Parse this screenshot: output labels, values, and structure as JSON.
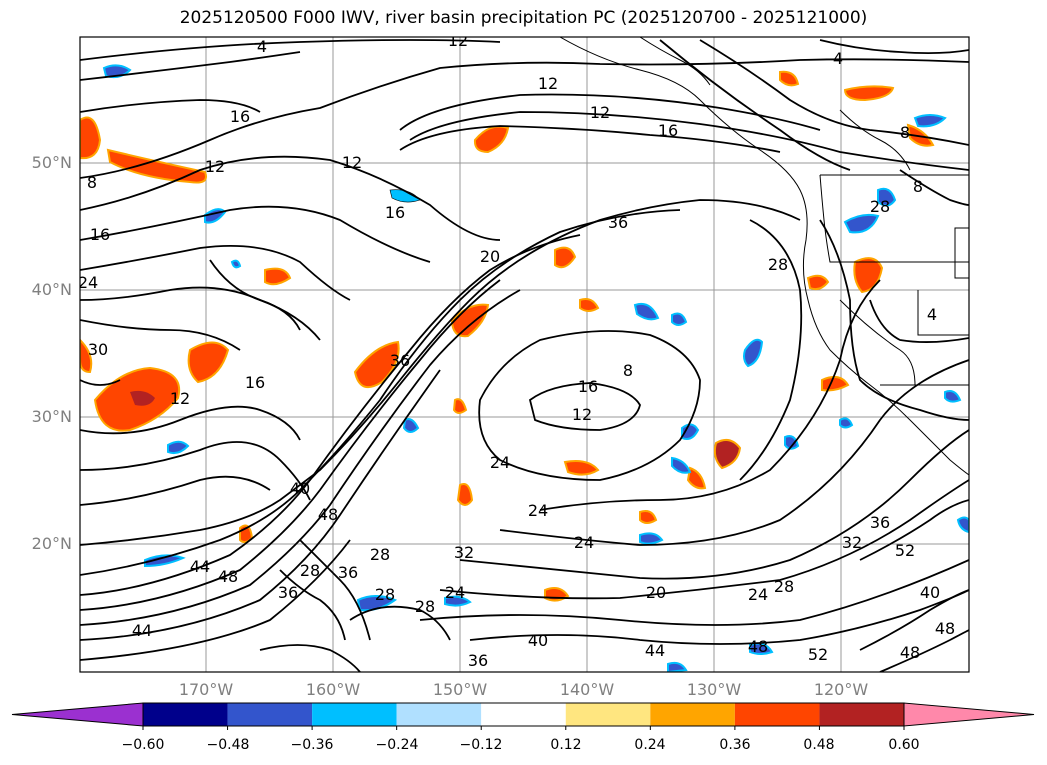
{
  "title": "2025120500 F000 IWV, river basin precipitation PC (2025120700 - 2025121000)",
  "lat_labels": [
    "50°N",
    "40°N",
    "30°N",
    "20°N"
  ],
  "lon_labels": [
    "170°W",
    "160°W",
    "150°W",
    "140°W",
    "130°W",
    "120°W"
  ],
  "colorbar": {
    "ticks": [
      "−0.60",
      "−0.48",
      "−0.36",
      "−0.24",
      "−0.12",
      "0.12",
      "0.24",
      "0.36",
      "0.48",
      "0.60"
    ],
    "colors": {
      "under": "#9b30d0",
      "bins": [
        "#00008b",
        "#3355cc",
        "#00bfff",
        "#b0e0ff",
        "#ffffff",
        "#ffe680",
        "#ffa500",
        "#ff4500",
        "#b22222"
      ],
      "over": "#ff88aa"
    }
  },
  "contour_labels": [
    "4",
    "12",
    "12",
    "12",
    "16",
    "4",
    "8",
    "8",
    "12",
    "16",
    "16",
    "24",
    "12",
    "20",
    "28",
    "36",
    "8",
    "4",
    "28",
    "12",
    "16",
    "16",
    "30",
    "36",
    "8",
    "12",
    "16",
    "32",
    "24",
    "24",
    "40",
    "48",
    "24",
    "28",
    "36",
    "44",
    "48",
    "28",
    "36",
    "28",
    "24",
    "28",
    "20",
    "40",
    "36",
    "44",
    "48",
    "24",
    "28",
    "32",
    "36",
    "52",
    "40",
    "52",
    "44",
    "48",
    "48"
  ],
  "colors": {
    "contour": "#000000",
    "grid": "#999999",
    "coast": "#000000"
  }
}
